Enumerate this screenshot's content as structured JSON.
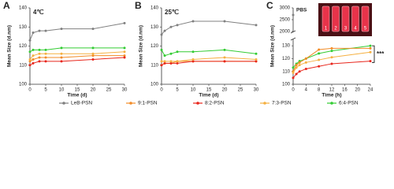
{
  "chart_data": [
    {
      "type": "line",
      "panel_label": "A",
      "title": "4℃",
      "x_label": "Time (d)",
      "y_label": "Mean Size (d.nm)",
      "x": [
        0,
        1,
        3,
        5,
        10,
        20,
        30
      ],
      "xlim": [
        0,
        30
      ],
      "xticks": [
        0,
        5,
        10,
        15,
        20,
        25,
        30
      ],
      "ylim": [
        100,
        140
      ],
      "yticks": [
        100,
        110,
        120,
        130,
        140
      ],
      "series": [
        {
          "name": "LeB-PSN",
          "color": "#808080",
          "values": [
            123,
            127,
            128,
            128,
            129,
            129,
            132
          ]
        },
        {
          "name": "9:1-PSN",
          "color": "#f28c28",
          "values": [
            112,
            113,
            114,
            114,
            114,
            115,
            115
          ]
        },
        {
          "name": "8:2-PSN",
          "color": "#e8261c",
          "values": [
            110,
            111,
            112,
            112,
            112,
            113,
            114
          ]
        },
        {
          "name": "7:3-PSN",
          "color": "#f5b041",
          "values": [
            113,
            115,
            116,
            116,
            116,
            116,
            117
          ]
        },
        {
          "name": "6:4-PSN",
          "color": "#33cc33",
          "values": [
            117,
            118,
            118,
            118,
            119,
            119,
            119
          ]
        }
      ]
    },
    {
      "type": "line",
      "panel_label": "B",
      "title": "25℃",
      "x_label": "Time (d)",
      "y_label": "Mean Size (d.nm)",
      "x": [
        0,
        1,
        3,
        5,
        10,
        20,
        30
      ],
      "xlim": [
        0,
        30
      ],
      "xticks": [
        0,
        5,
        10,
        15,
        20,
        25,
        30
      ],
      "ylim": [
        100,
        140
      ],
      "yticks": [
        100,
        110,
        120,
        130,
        140
      ],
      "series": [
        {
          "name": "LeB-PSN",
          "color": "#808080",
          "values": [
            126,
            128,
            130,
            131,
            133,
            133,
            131
          ]
        },
        {
          "name": "9:1-PSN",
          "color": "#f28c28",
          "values": [
            110,
            111,
            111,
            112,
            112,
            112,
            112
          ]
        },
        {
          "name": "8:2-PSN",
          "color": "#e8261c",
          "values": [
            110,
            111,
            111,
            111,
            112,
            112,
            112
          ]
        },
        {
          "name": "7:3-PSN",
          "color": "#f5b041",
          "values": [
            112,
            112,
            112,
            112,
            113,
            114,
            113
          ]
        },
        {
          "name": "6:4-PSN",
          "color": "#33cc33",
          "values": [
            118,
            115,
            116,
            117,
            117,
            118,
            116
          ]
        }
      ]
    },
    {
      "type": "broken-line",
      "panel_label": "C",
      "x_label": "Time (h)",
      "y_label": "Mean Size (d.nm)",
      "x": [
        0,
        1,
        2,
        4,
        8,
        12,
        24
      ],
      "xlim": [
        0,
        24
      ],
      "xticks": [
        0,
        4,
        8,
        12,
        16,
        20,
        24
      ],
      "ylim": [
        100,
        135
      ],
      "yticks": [
        100,
        110,
        120,
        130
      ],
      "ylim_top": [
        2000,
        3000
      ],
      "yticks_top": [
        2000,
        2500,
        3000
      ],
      "annotation": "***",
      "inset_labels": [
        "1",
        "2",
        "3",
        "4",
        "5"
      ],
      "series": [
        {
          "name": "PBS",
          "color": "#808080",
          "axis": "top",
          "values": [
            2700,
            null,
            null,
            null,
            null,
            null,
            null
          ]
        },
        {
          "name": "6:4-PSN",
          "color": "#33cc33",
          "values": [
            113,
            116,
            118,
            120,
            124,
            126,
            130
          ]
        },
        {
          "name": "9:1-PSN",
          "color": "#f28c28",
          "values": [
            110,
            115,
            117,
            120,
            127,
            128,
            128
          ]
        },
        {
          "name": "7:3-PSN",
          "color": "#f5b041",
          "values": [
            109,
            113,
            115,
            117,
            119,
            121,
            125
          ]
        },
        {
          "name": "8:2-PSN",
          "color": "#e8261c",
          "values": [
            105,
            108,
            110,
            112,
            114,
            116,
            118
          ]
        }
      ]
    }
  ]
}
